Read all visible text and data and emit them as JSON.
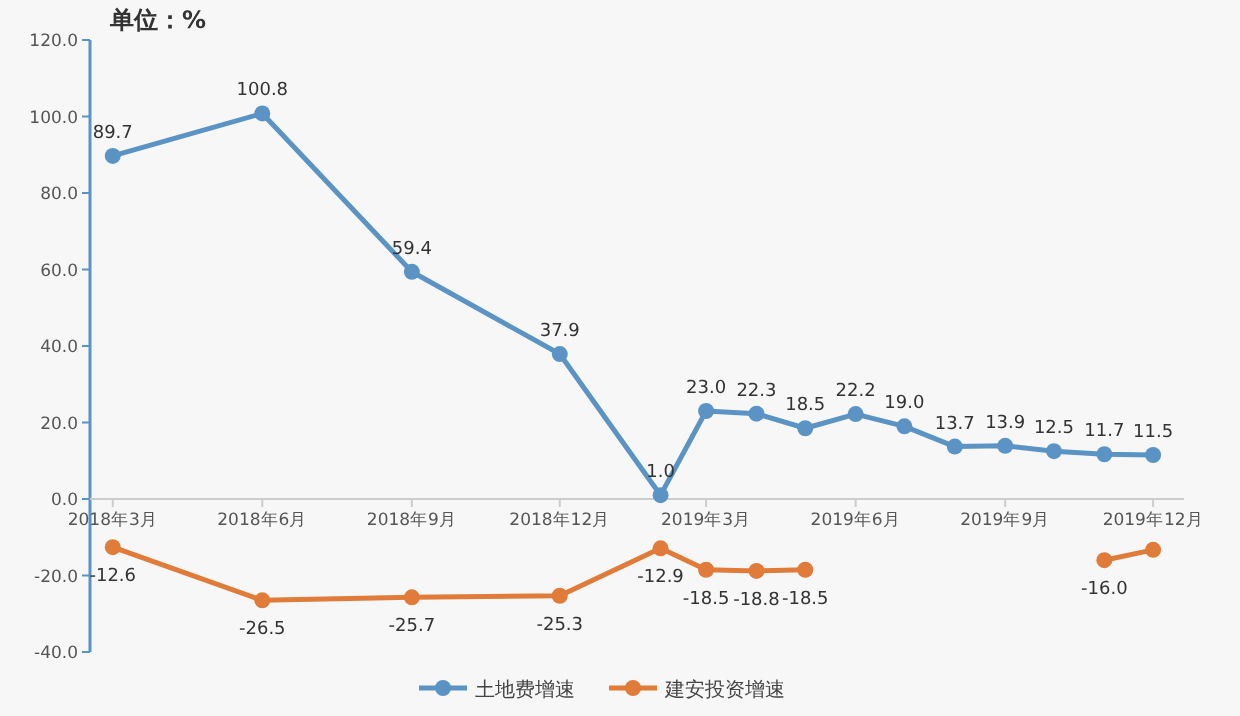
{
  "chart_data": {
    "type": "line",
    "title": "单位：%",
    "x": [
      "2018-03",
      "2018-06",
      "2018-09",
      "2018-12",
      "2019-02",
      "2019-03",
      "2019-04",
      "2019-05",
      "2019-06",
      "2019-07",
      "2019-08",
      "2019-09",
      "2019-10",
      "2019-11",
      "2019-12"
    ],
    "xlim": [
      "2018-02-15",
      "2019-12-20"
    ],
    "xticks": [
      {
        "value": "2018-03",
        "label": "2018年3月"
      },
      {
        "value": "2018-06",
        "label": "2018年6月"
      },
      {
        "value": "2018-09",
        "label": "2018年9月"
      },
      {
        "value": "2018-12",
        "label": "2018年12月"
      },
      {
        "value": "2019-03",
        "label": "2019年3月"
      },
      {
        "value": "2019-06",
        "label": "2019年6月"
      },
      {
        "value": "2019-09",
        "label": "2019年9月"
      },
      {
        "value": "2019-12",
        "label": "2019年12月"
      }
    ],
    "ylim": [
      -40,
      120
    ],
    "yticks": [
      {
        "value": -40,
        "label": "-40.0"
      },
      {
        "value": -20,
        "label": "-20.0"
      },
      {
        "value": 0,
        "label": "0.0"
      },
      {
        "value": 20,
        "label": "20.0"
      },
      {
        "value": 40,
        "label": "40.0"
      },
      {
        "value": 60,
        "label": "60.0"
      },
      {
        "value": 80,
        "label": "80.0"
      },
      {
        "value": 100,
        "label": "100.0"
      },
      {
        "value": 120,
        "label": "120.0"
      }
    ],
    "series": [
      {
        "name": "土地费增速",
        "color": "#5b94c4",
        "values": [
          89.7,
          100.8,
          59.4,
          37.9,
          1.0,
          23.0,
          22.3,
          18.5,
          22.2,
          19.0,
          13.7,
          13.9,
          12.5,
          11.7,
          11.5
        ],
        "value_labels": [
          "89.7",
          "100.8",
          "59.4",
          "37.9",
          "1.0",
          "23.0",
          "22.3",
          "18.5",
          "22.2",
          "19.0",
          "13.7",
          "13.9",
          "12.5",
          "11.7",
          "11.5"
        ]
      },
      {
        "name": "建安投资增速",
        "color": "#e07b39",
        "values": [
          -12.6,
          -26.5,
          -25.7,
          -25.3,
          -12.9,
          -18.5,
          -18.8,
          -18.5,
          null,
          null,
          null,
          null,
          null,
          -16.0,
          -13.3
        ],
        "value_labels": [
          "-12.6",
          "-26.5",
          "-25.7",
          "-25.3",
          "-12.9",
          "-18.5",
          "-18.8",
          "-18.5",
          null,
          null,
          null,
          null,
          null,
          "-16.0",
          null
        ]
      }
    ],
    "marker": "circle",
    "grid": false,
    "legend": "bottom"
  }
}
